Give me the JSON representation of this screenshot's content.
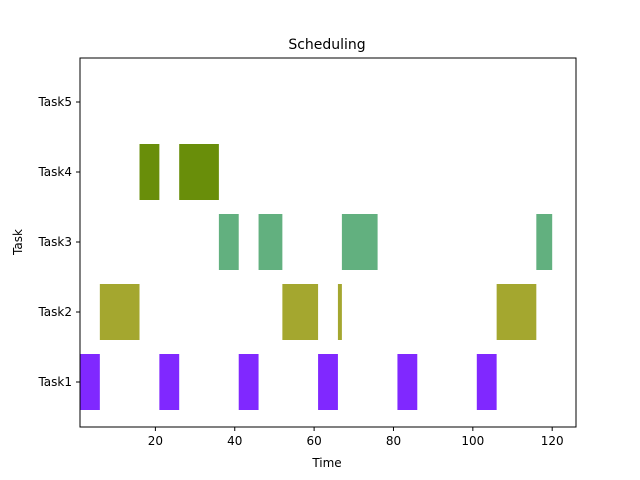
{
  "chart_data": {
    "type": "bar",
    "subtype": "gantt",
    "title": "Scheduling",
    "xlabel": "Time",
    "ylabel": "Task",
    "xlim": [
      1,
      126
    ],
    "xticks": [
      20,
      40,
      60,
      80,
      100,
      120
    ],
    "grid": false,
    "categories": [
      "Task1",
      "Task2",
      "Task3",
      "Task4",
      "Task5"
    ],
    "series": [
      {
        "color": "#8028ff",
        "segments": [
          [
            1,
            6
          ],
          [
            21,
            26
          ],
          [
            41,
            46
          ],
          [
            61,
            66
          ],
          [
            81,
            86
          ],
          [
            101,
            106
          ]
        ]
      },
      {
        "color": "#a4a72f",
        "segments": [
          [
            6,
            16
          ],
          [
            52,
            61
          ],
          [
            66,
            67
          ],
          [
            106,
            116
          ]
        ]
      },
      {
        "color": "#62b07f",
        "segments": [
          [
            36,
            41
          ],
          [
            46,
            52
          ],
          [
            67,
            76
          ],
          [
            116,
            120
          ]
        ]
      },
      {
        "color": "#698e0a",
        "segments": [
          [
            16,
            21
          ],
          [
            26,
            36
          ]
        ]
      },
      {
        "color": "#000000",
        "segments": []
      }
    ]
  }
}
